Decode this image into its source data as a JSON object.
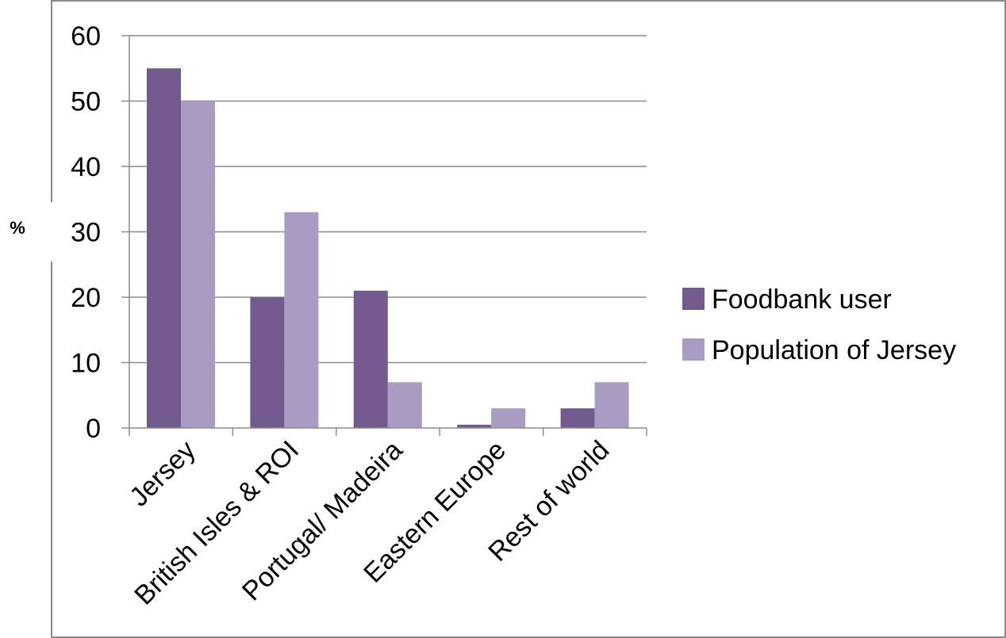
{
  "chart_data": {
    "type": "bar",
    "title": "",
    "xlabel": "",
    "ylabel": "%",
    "ylim": [
      0,
      60
    ],
    "yticks": [
      0,
      10,
      20,
      30,
      40,
      50,
      60
    ],
    "grid": true,
    "legend_position": "right",
    "categories": [
      "Jersey",
      "British Isles & ROI",
      "Portugal/ Madeira",
      "Eastern Europe",
      "Rest of world"
    ],
    "series": [
      {
        "name": "Foodbank user",
        "color": "#725a8e",
        "values": [
          55,
          20,
          21,
          0.5,
          3
        ]
      },
      {
        "name": "Population of Jersey",
        "color": "#a99bc1",
        "values": [
          50,
          33,
          7,
          3,
          7
        ]
      }
    ]
  }
}
